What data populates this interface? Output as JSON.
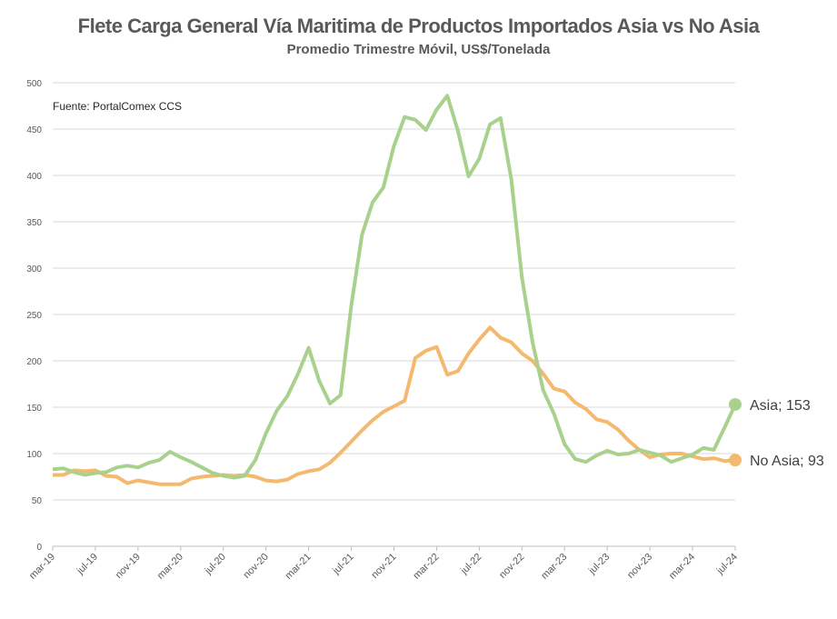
{
  "chart_data": {
    "type": "line",
    "title": "Flete Carga General Vía Maritima de Productos Importados Asia vs No Asia",
    "subtitle": "Promedio Trimestre Móvil, US$/Tonelada",
    "annotation": "Fuente: PortalComex CCS",
    "ylim": [
      0,
      500
    ],
    "yticks": [
      0,
      50,
      100,
      150,
      200,
      250,
      300,
      350,
      400,
      450,
      500
    ],
    "xtick_labels": [
      "mar-19",
      "jul-19",
      "nov-19",
      "mar-20",
      "jul-20",
      "nov-20",
      "mar-21",
      "jul-21",
      "nov-21",
      "mar-22",
      "jul-22",
      "nov-22",
      "mar-23",
      "jul-23",
      "nov-23",
      "mar-24",
      "jul-24"
    ],
    "x_start": "mar-19",
    "x_end": "jul-24",
    "frequency": "monthly",
    "series": [
      {
        "name": "Asia",
        "color": "#a9d18e",
        "end_label": "Asia; 153",
        "values": [
          83,
          84,
          80,
          77,
          79,
          80,
          85,
          87,
          85,
          90,
          93,
          102,
          96,
          91,
          85,
          79,
          76,
          74,
          76,
          93,
          122,
          146,
          162,
          186,
          214,
          178,
          154,
          163,
          260,
          336,
          371,
          387,
          432,
          463,
          460,
          449,
          471,
          486,
          448,
          399,
          418,
          455,
          462,
          396,
          290,
          220,
          168,
          143,
          110,
          94,
          91,
          98,
          103,
          99,
          100,
          104,
          101,
          98,
          91,
          95,
          99,
          106,
          104,
          128,
          153
        ]
      },
      {
        "name": "No Asia",
        "color": "#f4b96e",
        "end_label": "No Asia; 93",
        "values": [
          77,
          77,
          82,
          81,
          82,
          76,
          75,
          68,
          71,
          69,
          67,
          67,
          67,
          73,
          75,
          76,
          77,
          76,
          77,
          75,
          71,
          70,
          72,
          78,
          81,
          83,
          90,
          101,
          113,
          125,
          136,
          145,
          151,
          157,
          203,
          211,
          215,
          185,
          189,
          208,
          223,
          236,
          225,
          220,
          208,
          200,
          186,
          170,
          167,
          155,
          148,
          137,
          134,
          126,
          114,
          104,
          96,
          99,
          100,
          100,
          97,
          94,
          95,
          92,
          93
        ]
      }
    ]
  }
}
